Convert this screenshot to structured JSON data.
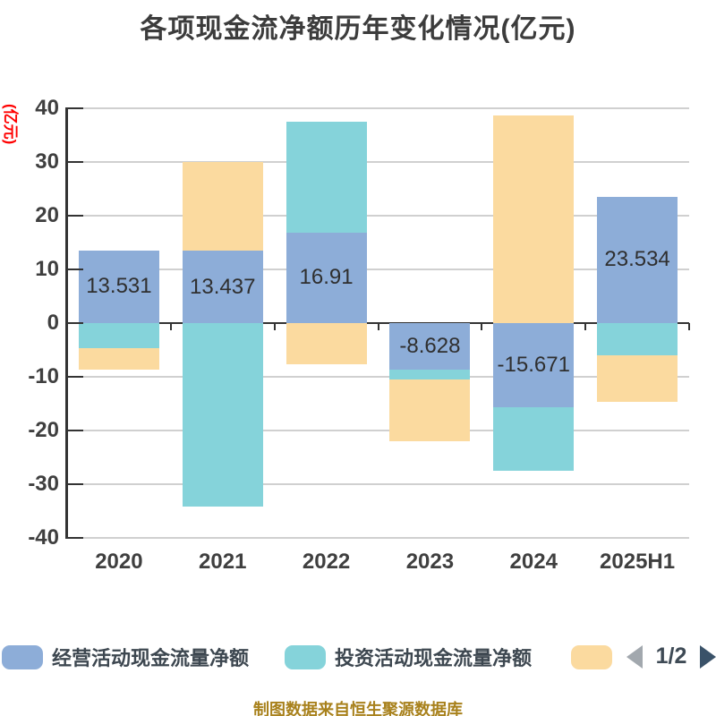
{
  "chart_data": {
    "type": "bar",
    "stacked": true,
    "title": "各项现金流净额历年变化情况(亿元)",
    "ylabel": "(亿元)",
    "ylim": [
      -40,
      40
    ],
    "ytick_step": 10,
    "grid": true,
    "legend_position": "bottom",
    "categories": [
      "2020",
      "2021",
      "2022",
      "2023",
      "2024",
      "2025H1"
    ],
    "series": [
      {
        "name": "经营活动现金流量净额",
        "color": "#8DADD8",
        "values": [
          13.531,
          13.437,
          16.91,
          -8.628,
          -15.671,
          23.534
        ],
        "labels": [
          "13.531",
          "13.437",
          "16.91",
          "-8.628",
          "-15.671",
          "23.534"
        ]
      },
      {
        "name": "投资活动现金流量净额",
        "color": "#85D3DA",
        "values": [
          -4.7,
          -34.2,
          20.6,
          -1.8,
          -11.8,
          -6.0
        ]
      },
      {
        "name": "",
        "color": "#FBDA9F",
        "values": [
          -3.9,
          16.6,
          -7.6,
          -11.6,
          38.6,
          -8.6
        ]
      }
    ]
  },
  "legend": {
    "pagination": {
      "current": "1/2",
      "prev_icon": "left-triangle",
      "next_icon": "right-triangle"
    }
  },
  "caption": {
    "text": "制图数据来自恒生聚源数据库"
  },
  "colors": {
    "operating_series": "#8DADD8",
    "investing_series": "#85D3DA",
    "financing_series": "#FBDA9F",
    "title_text": "#3C3C3C",
    "axis_text": "#3F3F3F",
    "bar_label_text": "#2F2F2F",
    "y_unit_label": "#FF0000",
    "gridline": "#D0D0D0",
    "axis_line": "#333333",
    "legend_text": "#3D4750",
    "caption_text": "#A8811C",
    "pager_prev_icon": "#A2A8AE",
    "pager_next_icon": "#3A5269"
  }
}
